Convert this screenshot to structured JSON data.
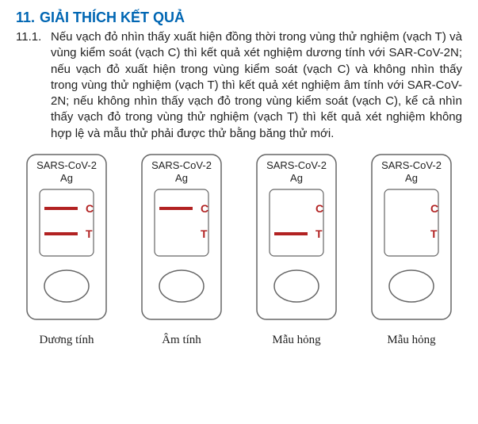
{
  "heading": {
    "num": "11.",
    "text": "GIẢI THÍCH KẾT QUẢ"
  },
  "sub": {
    "num": "11.1.",
    "text": "Nếu vạch đỏ nhìn thấy xuất hiện đồng thời trong vùng thử nghiệm (vạch T) và vùng kiểm soát (vạch C) thì kết quả xét nghiệm dương tính với SAR-CoV-2N; nếu vạch đỏ xuất hiện trong vùng kiểm soát (vạch C) và không nhìn thấy trong vùng thử nghiệm (vạch T) thì kết quả xét nghiệm âm tính với SAR-CoV-2N; nếu không nhìn thấy vạch đỏ trong vùng kiểm soát (vạch C), kể cả nhìn thấy vạch đỏ trong vùng thử nghiệm (vạch T) thì kết quả xét nghiệm không hợp lệ và mẫu thử phải được thử bằng băng thử mới."
  },
  "cassettes": [
    {
      "label": "SARS-CoV-2",
      "sub": "Ag",
      "showC": true,
      "showT": true,
      "caption": "Dương tính"
    },
    {
      "label": "SARS-CoV-2",
      "sub": "Ag",
      "showC": true,
      "showT": false,
      "caption": "Âm tính"
    },
    {
      "label": "SARS-CoV-2",
      "sub": "Ag",
      "showC": false,
      "showT": true,
      "caption": "Mẫu hỏng"
    },
    {
      "label": "SARS-CoV-2",
      "sub": "Ag",
      "showC": false,
      "showT": false,
      "caption": "Mẫu hỏng"
    }
  ],
  "style": {
    "heading_color": "#0066b3",
    "body_color": "#222222",
    "line_color": "#b22222",
    "letter_color": "#b22222",
    "stroke_color": "#666666",
    "bg": "#ffffff",
    "cassette_w": 112,
    "cassette_h": 220,
    "font_heading_pt": 14,
    "font_body_pt": 11
  }
}
